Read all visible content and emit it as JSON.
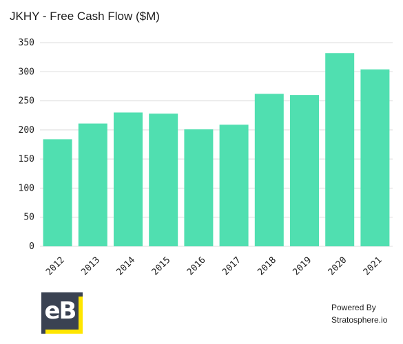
{
  "chart_data": {
    "type": "bar",
    "title": "JKHY - Free Cash Flow ($M)",
    "categories": [
      "2012",
      "2013",
      "2014",
      "2015",
      "2016",
      "2017",
      "2018",
      "2019",
      "2020",
      "2021"
    ],
    "values": [
      184,
      211,
      230,
      228,
      201,
      209,
      262,
      260,
      332,
      304
    ],
    "ylim": [
      0,
      350
    ],
    "yticks": [
      0,
      50,
      100,
      150,
      200,
      250,
      300,
      350
    ],
    "grid": true,
    "bar_color": "#50dfb0"
  },
  "logo": {
    "text": "eB"
  },
  "footer": {
    "line1": "Powered By",
    "line2": "Stratosphere.io"
  }
}
